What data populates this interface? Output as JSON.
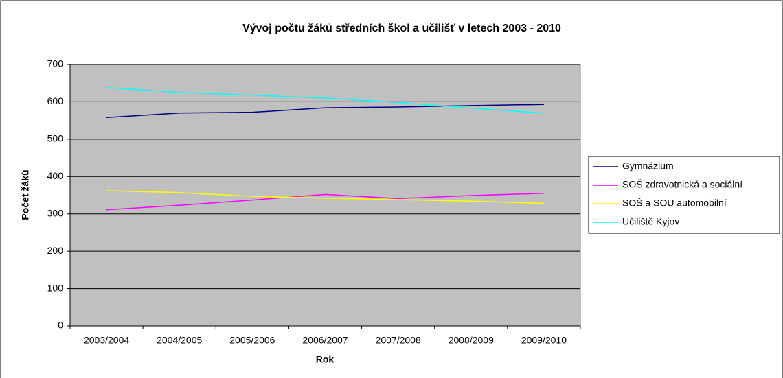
{
  "chart_data": {
    "type": "line",
    "title": "Vývoj počtu žáků středních škol a učilišť v letech 2003 - 2010",
    "x_label": "Rok",
    "y_label": "Počet žáků",
    "categories": [
      "2003/2004",
      "2004/2005",
      "2005/2006",
      "2006/2007",
      "2007/2008",
      "2008/2009",
      "2009/2010"
    ],
    "series": [
      {
        "name": "Gymnázium",
        "color": "#000080",
        "values": [
          558,
          570,
          572,
          584,
          586,
          590,
          593
        ]
      },
      {
        "name": "SOŠ zdravotnická a sociální",
        "color": "#ff00ff",
        "values": [
          311,
          323,
          337,
          352,
          341,
          349,
          355
        ]
      },
      {
        "name": "SOŠ a SOU automobilní",
        "color": "#ffff00",
        "values": [
          362,
          357,
          347,
          342,
          338,
          334,
          328
        ]
      },
      {
        "name": "Učiliště Kyjov",
        "color": "#00ffff",
        "values": [
          638,
          625,
          618,
          610,
          598,
          583,
          570
        ]
      }
    ],
    "ylim": [
      0,
      700
    ],
    "yticks": [
      0,
      100,
      200,
      300,
      400,
      500,
      600,
      700
    ],
    "grid": true,
    "legend": "right"
  }
}
